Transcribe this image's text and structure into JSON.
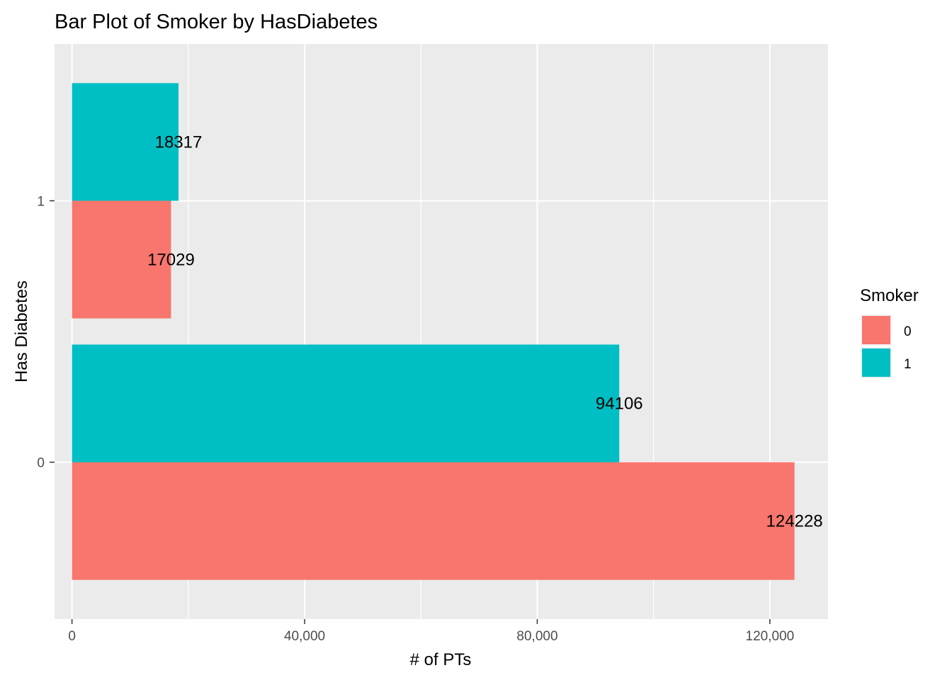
{
  "chart_data": {
    "type": "bar",
    "orientation": "horizontal",
    "position": "dodge",
    "title": "Bar Plot of Smoker by HasDiabetes",
    "xlabel": "# of PTs",
    "ylabel": "Has Diabetes",
    "categories": [
      "0",
      "1"
    ],
    "series": [
      {
        "name": "0",
        "color": "#F8766D",
        "values": [
          124228,
          17029
        ]
      },
      {
        "name": "1",
        "color": "#00BFC4",
        "values": [
          94106,
          18317
        ]
      }
    ],
    "xlim": [
      -3000,
      130000
    ],
    "x_ticks": [
      0,
      40000,
      80000,
      120000
    ],
    "x_tick_labels": [
      "0",
      "40,000",
      "80,000",
      "120,000"
    ],
    "grid": true,
    "panel_background": "#EBEBEB",
    "legend": {
      "title": "Smoker",
      "position": "right",
      "entries": [
        "0",
        "1"
      ]
    }
  }
}
